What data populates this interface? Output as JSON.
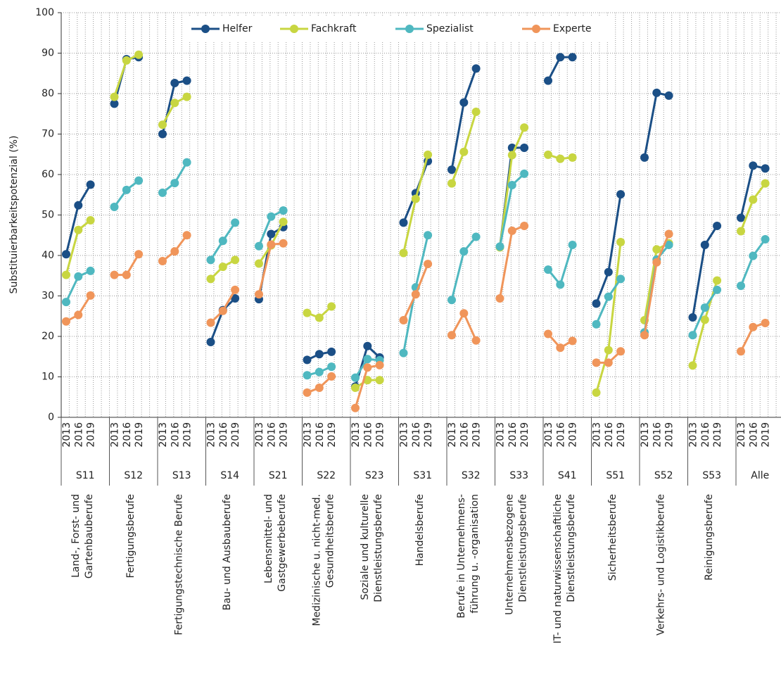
{
  "chart_data": {
    "type": "line",
    "y_label": "Substituierbarkeitspotenzial (%)",
    "ylim": [
      0,
      100
    ],
    "yticks": [
      0,
      10,
      20,
      30,
      40,
      50,
      60,
      70,
      80,
      90,
      100
    ],
    "grid": true,
    "legend": "top",
    "years": [
      "2013",
      "2016",
      "2019"
    ],
    "groups": [
      {
        "code": "S11",
        "name": [
          "Land-, Forst- und",
          "Gartenbauberufe"
        ]
      },
      {
        "code": "S12",
        "name": [
          "Fertigungsberufe"
        ]
      },
      {
        "code": "S13",
        "name": [
          "Fertigungstechnische Berufe"
        ]
      },
      {
        "code": "S14",
        "name": [
          "Bau- und Ausbauberufe"
        ]
      },
      {
        "code": "S21",
        "name": [
          "Lebensmittel- und",
          "Gastgewerbeberufe"
        ]
      },
      {
        "code": "S22",
        "name": [
          "Medizinische u. nicht-med.",
          "Gesundheitsberufe"
        ]
      },
      {
        "code": "S23",
        "name": [
          "Soziale und kulturelle",
          "Dienstleistungsberufe"
        ]
      },
      {
        "code": "S31",
        "name": [
          "Handelsberufe"
        ]
      },
      {
        "code": "S32",
        "name": [
          "Berufe in Unternehmens-",
          "führung u. -organisation"
        ]
      },
      {
        "code": "S33",
        "name": [
          "Unternehmensbezogene",
          "Dienstleistungsberufe"
        ]
      },
      {
        "code": "S41",
        "name": [
          "IT- und naturwissenschaftliche",
          "Dienstleistungsberufe"
        ]
      },
      {
        "code": "S51",
        "name": [
          "Sicherheitsberufe"
        ]
      },
      {
        "code": "S52",
        "name": [
          "Verkehrs- und Logistikberufe"
        ]
      },
      {
        "code": "S53",
        "name": [
          "Reinigungsberufe"
        ]
      },
      {
        "code": "Alle",
        "name": []
      }
    ],
    "series": [
      {
        "name": "Helfer",
        "color": "#1b4f86",
        "values": [
          [
            40.3,
            52.4,
            57.5
          ],
          [
            77.5,
            88.5,
            89.0
          ],
          [
            70.0,
            82.6,
            83.2
          ],
          [
            18.6,
            26.5,
            29.4
          ],
          [
            29.2,
            45.3,
            47.0
          ],
          [
            14.2,
            15.6,
            16.2
          ],
          [
            7.6,
            17.6,
            14.8
          ],
          [
            48.1,
            55.4,
            63.3
          ],
          [
            61.2,
            77.8,
            86.2
          ],
          [
            42.1,
            66.6,
            66.6
          ],
          [
            83.2,
            89.0,
            89.0
          ],
          [
            28.1,
            35.9,
            55.1
          ],
          [
            64.2,
            80.2,
            79.5
          ],
          [
            24.7,
            42.6,
            47.3
          ],
          [
            49.3,
            62.2,
            61.5
          ]
        ]
      },
      {
        "name": "Fachkraft",
        "color": "#c8d641",
        "values": [
          [
            35.2,
            46.3,
            48.7
          ],
          [
            79.2,
            88.2,
            89.6
          ],
          [
            72.3,
            77.7,
            79.2
          ],
          [
            34.2,
            37.2,
            38.9
          ],
          [
            38.0,
            42.5,
            48.3
          ],
          [
            25.8,
            24.6,
            27.4
          ],
          [
            7.3,
            9.2,
            9.2
          ],
          [
            40.6,
            54.0,
            64.9
          ],
          [
            57.8,
            65.6,
            75.5
          ],
          [
            42.0,
            64.8,
            71.6
          ],
          [
            64.9,
            63.9,
            64.2
          ],
          [
            6.1,
            16.6,
            43.3
          ],
          [
            24.0,
            41.5,
            43.0
          ],
          [
            12.8,
            24.1,
            33.8
          ],
          [
            46.0,
            53.8,
            57.8
          ]
        ]
      },
      {
        "name": "Spezialist",
        "color": "#4fb8c0",
        "values": [
          [
            28.5,
            34.8,
            36.2
          ],
          [
            52.0,
            56.2,
            58.5
          ],
          [
            55.5,
            57.9,
            63.0
          ],
          [
            38.9,
            43.6,
            48.1
          ],
          [
            42.3,
            49.6,
            51.1
          ],
          [
            10.4,
            11.2,
            12.5
          ],
          [
            9.8,
            14.4,
            14.1
          ],
          [
            15.9,
            32.1,
            45.0
          ],
          [
            29.0,
            41.0,
            44.6
          ],
          [
            42.2,
            57.4,
            60.2
          ],
          [
            36.5,
            32.8,
            42.6
          ],
          [
            23.0,
            29.8,
            34.2
          ],
          [
            21.0,
            39.0,
            42.6
          ],
          [
            20.3,
            27.1,
            31.5
          ],
          [
            32.5,
            39.9,
            44.0
          ]
        ]
      },
      {
        "name": "Experte",
        "color": "#f0955a",
        "values": [
          [
            23.7,
            25.3,
            30.1
          ],
          [
            35.2,
            35.2,
            40.3
          ],
          [
            38.6,
            41.0,
            45.0
          ],
          [
            23.4,
            26.3,
            31.5
          ],
          [
            30.4,
            42.7,
            43.0
          ],
          [
            6.1,
            7.3,
            10.1
          ],
          [
            2.3,
            12.3,
            12.9
          ],
          [
            24.0,
            30.4,
            37.9
          ],
          [
            20.3,
            25.7,
            19.0
          ],
          [
            29.4,
            46.1,
            47.3
          ],
          [
            20.6,
            17.2,
            18.9
          ],
          [
            13.5,
            13.5,
            16.3
          ],
          [
            20.3,
            38.3,
            45.3
          ],
          [
            null,
            null,
            null
          ],
          [
            16.3,
            22.3,
            23.3
          ]
        ]
      }
    ]
  }
}
